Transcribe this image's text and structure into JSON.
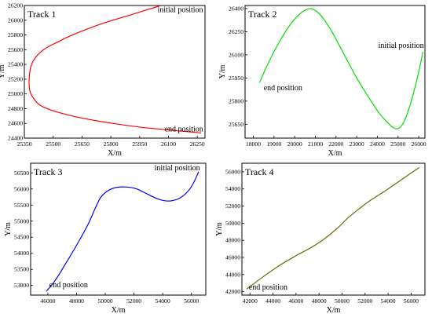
{
  "chart_data": [
    {
      "type": "line",
      "title": "Track 1",
      "xlabel": "X/m",
      "ylabel": "Y/m",
      "xlim": [
        25350,
        26290
      ],
      "ylim": [
        24400,
        26200
      ],
      "xticks": [
        25350,
        25500,
        25650,
        25800,
        25950,
        26100,
        26250
      ],
      "yticks": [
        24400,
        24600,
        24800,
        25000,
        25200,
        25400,
        25600,
        25800,
        26000,
        26200
      ],
      "series": [
        {
          "color": "#ff0000",
          "x": [
            26060,
            25900,
            25750,
            25600,
            25520,
            25455,
            25410,
            25385,
            25375,
            25378,
            25395,
            25430,
            25490,
            25600,
            25760,
            25950,
            26150,
            26270
          ],
          "y": [
            26200,
            26070,
            25950,
            25800,
            25700,
            25610,
            25500,
            25380,
            25200,
            25050,
            24950,
            24850,
            24780,
            24700,
            24620,
            24550,
            24500,
            24470
          ]
        }
      ],
      "annotations": [
        {
          "text": "initial position",
          "x": 26280,
          "y": 26140,
          "anchor": "end"
        },
        {
          "text": "end position",
          "x": 26080,
          "y": 24520,
          "anchor": "start"
        }
      ]
    },
    {
      "type": "line",
      "title": "Track 2",
      "xlabel": "X/m",
      "ylabel": "Y/m",
      "xlim": [
        17600,
        26300
      ],
      "ylim": [
        25560,
        26420
      ],
      "xticks": [
        18000,
        19000,
        20000,
        21000,
        22000,
        23000,
        24000,
        25000,
        26000
      ],
      "yticks": [
        25650,
        25800,
        25950,
        26100,
        26250,
        26400
      ],
      "series": [
        {
          "color": "#00e000",
          "x": [
            18300,
            18700,
            19200,
            19700,
            20200,
            20600,
            20900,
            21300,
            21800,
            22400,
            23000,
            23600,
            24100,
            24500,
            24800,
            25050,
            25300,
            25550,
            25800,
            26050,
            26200
          ],
          "y": [
            25920,
            26040,
            26170,
            26280,
            26360,
            26395,
            26395,
            26350,
            26250,
            26100,
            25950,
            25820,
            25720,
            25660,
            25625,
            25625,
            25670,
            25760,
            25880,
            26020,
            26120
          ]
        }
      ],
      "annotations": [
        {
          "text": "initial position",
          "x": 26250,
          "y": 26160,
          "anchor": "end"
        },
        {
          "text": "end position",
          "x": 18500,
          "y": 25885,
          "anchor": "start"
        }
      ]
    },
    {
      "type": "line",
      "title": "Track 3",
      "xlabel": "X/m",
      "ylabel": "Y/m",
      "xlim": [
        44800,
        57000
      ],
      "ylim": [
        52700,
        56800
      ],
      "xticks": [
        46000,
        48000,
        50000,
        52000,
        54000,
        56000
      ],
      "yticks": [
        53000,
        53500,
        54000,
        54500,
        55000,
        55500,
        56000,
        56500
      ],
      "series": [
        {
          "color": "#0000ff",
          "x": [
            45900,
            46500,
            47200,
            48000,
            48800,
            49300,
            49700,
            50200,
            50800,
            51500,
            52200,
            52900,
            53600,
            54200,
            54700,
            55200,
            55700,
            56100,
            56500
          ],
          "y": [
            52820,
            53150,
            53650,
            54250,
            54900,
            55400,
            55750,
            55950,
            56050,
            56060,
            56000,
            55850,
            55700,
            55630,
            55640,
            55720,
            55900,
            56150,
            56530
          ]
        }
      ],
      "annotations": [
        {
          "text": "initial position",
          "x": 56600,
          "y": 56650,
          "anchor": "end"
        },
        {
          "text": "end position",
          "x": 46100,
          "y": 53020,
          "anchor": "start"
        }
      ]
    },
    {
      "type": "line",
      "title": "Track 4",
      "xlabel": "X/m",
      "ylabel": "Y/m",
      "xlim": [
        41300,
        57200
      ],
      "ylim": [
        41600,
        57000
      ],
      "xticks": [
        42000,
        44000,
        46000,
        48000,
        50000,
        52000,
        54000,
        56000
      ],
      "yticks": [
        42000,
        44000,
        46000,
        48000,
        50000,
        52000,
        54000,
        56000
      ],
      "series": [
        {
          "color": "#6b6b00",
          "x": [
            41700,
            43000,
            44500,
            46000,
            47500,
            48500,
            49500,
            50500,
            51500,
            52500,
            54000,
            55500,
            56700
          ],
          "y": [
            42300,
            43600,
            45000,
            46200,
            47300,
            48200,
            49300,
            50600,
            51700,
            52700,
            54000,
            55400,
            56500
          ]
        }
      ],
      "annotations": [
        {
          "text": "end position",
          "x": 41900,
          "y": 42500,
          "anchor": "start"
        }
      ]
    }
  ]
}
